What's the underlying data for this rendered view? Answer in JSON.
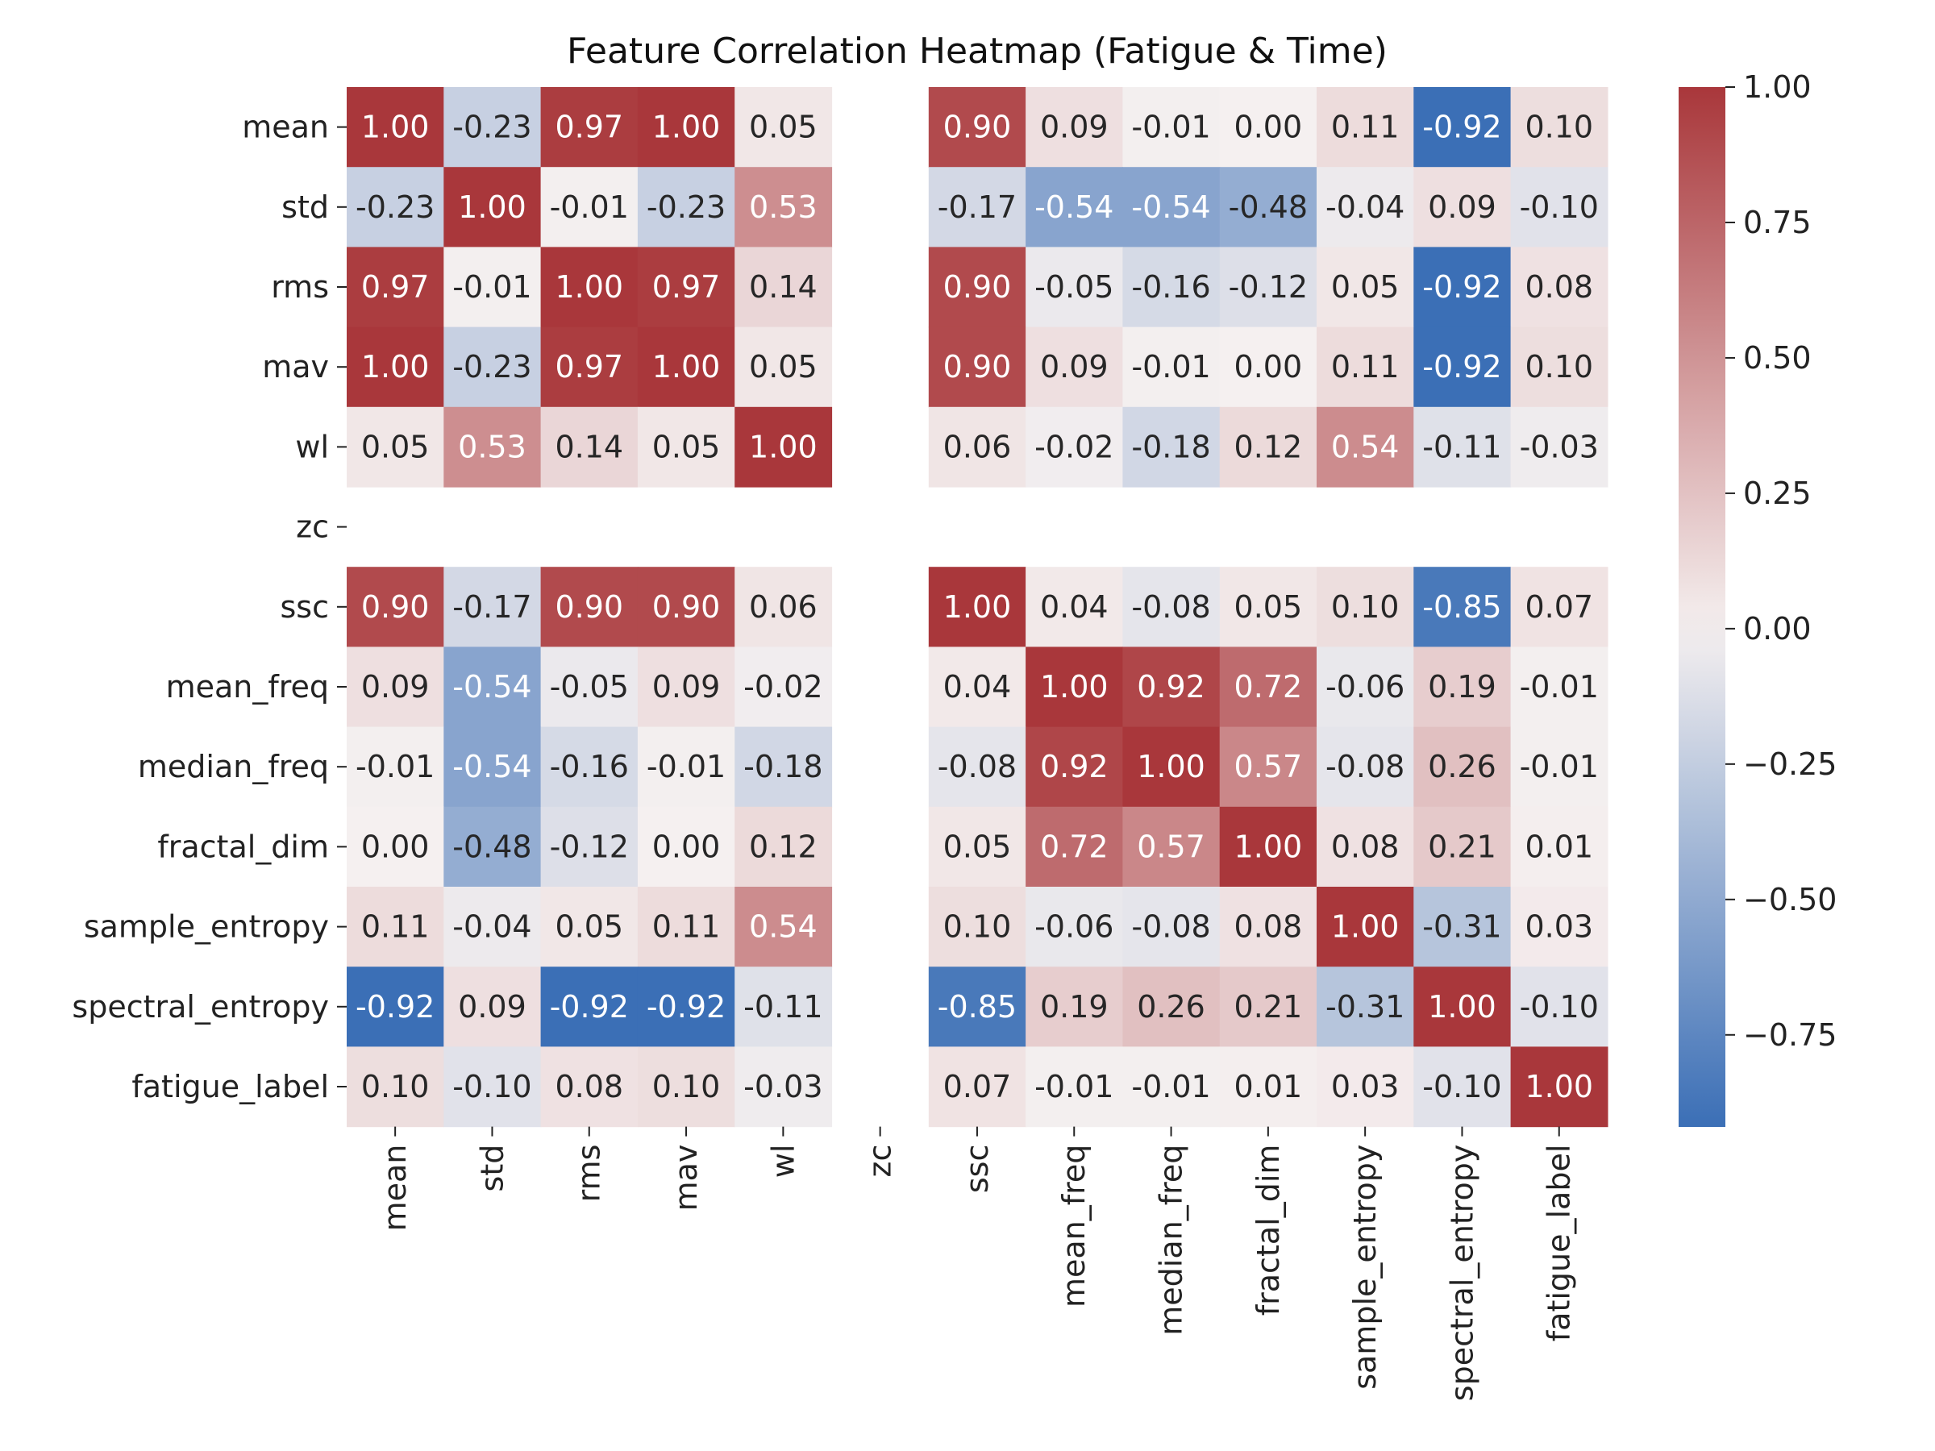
{
  "chart_data": {
    "type": "heatmap",
    "title": "Feature Correlation Heatmap (Fatigue & Time)",
    "labels": [
      "mean",
      "std",
      "rms",
      "mav",
      "wl",
      "zc",
      "ssc",
      "mean_freq",
      "median_freq",
      "fractal_dim",
      "sample_entropy",
      "spectral_entropy",
      "fatigue_label"
    ],
    "matrix": [
      [
        1.0,
        -0.23,
        0.97,
        1.0,
        0.05,
        null,
        0.9,
        0.09,
        -0.01,
        0.0,
        0.11,
        -0.92,
        0.1
      ],
      [
        -0.23,
        1.0,
        -0.01,
        -0.23,
        0.53,
        null,
        -0.17,
        -0.54,
        -0.54,
        -0.48,
        -0.04,
        0.09,
        -0.1
      ],
      [
        0.97,
        -0.01,
        1.0,
        0.97,
        0.14,
        null,
        0.9,
        -0.05,
        -0.16,
        -0.12,
        0.05,
        -0.92,
        0.08
      ],
      [
        1.0,
        -0.23,
        0.97,
        1.0,
        0.05,
        null,
        0.9,
        0.09,
        -0.01,
        0.0,
        0.11,
        -0.92,
        0.1
      ],
      [
        0.05,
        0.53,
        0.14,
        0.05,
        1.0,
        null,
        0.06,
        -0.02,
        -0.18,
        0.12,
        0.54,
        -0.11,
        -0.03
      ],
      [
        null,
        null,
        null,
        null,
        null,
        null,
        null,
        null,
        null,
        null,
        null,
        null,
        null
      ],
      [
        0.9,
        -0.17,
        0.9,
        0.9,
        0.06,
        null,
        1.0,
        0.04,
        -0.08,
        0.05,
        0.1,
        -0.85,
        0.07
      ],
      [
        0.09,
        -0.54,
        -0.05,
        0.09,
        -0.02,
        null,
        0.04,
        1.0,
        0.92,
        0.72,
        -0.06,
        0.19,
        -0.01
      ],
      [
        -0.01,
        -0.54,
        -0.16,
        -0.01,
        -0.18,
        null,
        -0.08,
        0.92,
        1.0,
        0.57,
        -0.08,
        0.26,
        -0.01
      ],
      [
        0.0,
        -0.48,
        -0.12,
        0.0,
        0.12,
        null,
        0.05,
        0.72,
        0.57,
        1.0,
        0.08,
        0.21,
        0.01
      ],
      [
        0.11,
        -0.04,
        0.05,
        0.11,
        0.54,
        null,
        0.1,
        -0.06,
        -0.08,
        0.08,
        1.0,
        -0.31,
        0.03
      ],
      [
        -0.92,
        0.09,
        -0.92,
        -0.92,
        -0.11,
        null,
        -0.85,
        0.19,
        0.26,
        0.21,
        -0.31,
        1.0,
        -0.1
      ],
      [
        0.1,
        -0.1,
        0.08,
        0.1,
        -0.03,
        null,
        0.07,
        -0.01,
        -0.01,
        0.01,
        0.03,
        -0.1,
        1.0
      ]
    ],
    "colormap": {
      "name": "vlag",
      "low_color": "#3b6fb6",
      "mid_color": "#f5f0f0",
      "high_color": "#a9373b"
    },
    "value_range": [
      -0.92,
      1.0
    ],
    "colorbar_ticks": [
      {
        "value": 1.0,
        "label": "1.00"
      },
      {
        "value": 0.75,
        "label": "0.75"
      },
      {
        "value": 0.5,
        "label": "0.50"
      },
      {
        "value": 0.25,
        "label": "0.25"
      },
      {
        "value": 0.0,
        "label": "0.00"
      },
      {
        "value": -0.25,
        "label": "−0.25"
      },
      {
        "value": -0.5,
        "label": "−0.50"
      },
      {
        "value": -0.75,
        "label": "−0.75"
      }
    ],
    "annotated": true,
    "value_format": "2 decimals",
    "grid": false,
    "legend": "colorbar-right"
  }
}
